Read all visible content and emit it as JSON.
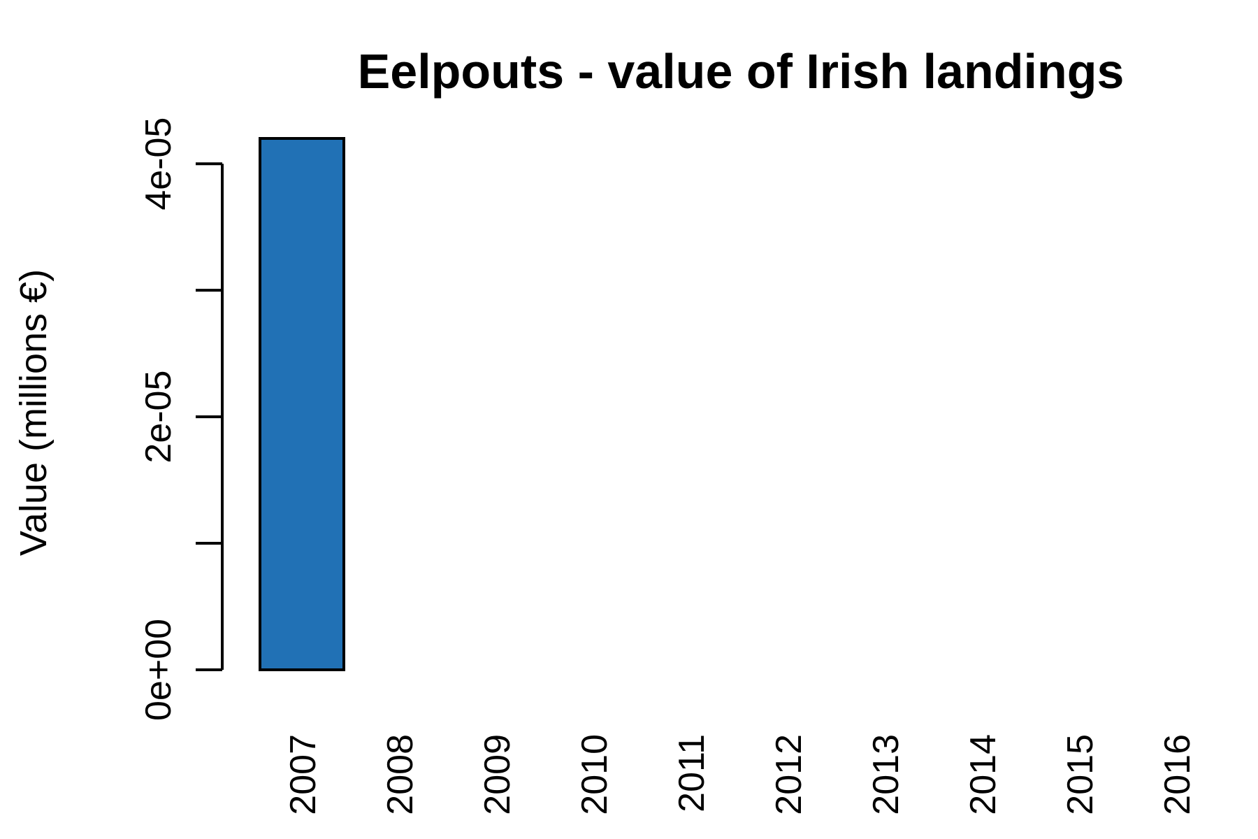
{
  "chart_data": {
    "type": "bar",
    "title": "Eelpouts - value of Irish landings",
    "xlabel": "",
    "ylabel": "Value (millions €)",
    "categories": [
      "2007",
      "2008",
      "2009",
      "2010",
      "2011",
      "2012",
      "2013",
      "2014",
      "2015",
      "2016"
    ],
    "values": [
      4.2e-05,
      0,
      0,
      0,
      0,
      0,
      0,
      0,
      0,
      0
    ],
    "ylim": [
      0,
      4.2e-05
    ],
    "y_ticks": [
      0,
      1e-05,
      2e-05,
      3e-05,
      4e-05
    ],
    "y_tick_labels": [
      "0e+00",
      "",
      "2e-05",
      "",
      "4e-05"
    ],
    "bar_color": "#2171b5",
    "grid": false,
    "legend": "none"
  }
}
